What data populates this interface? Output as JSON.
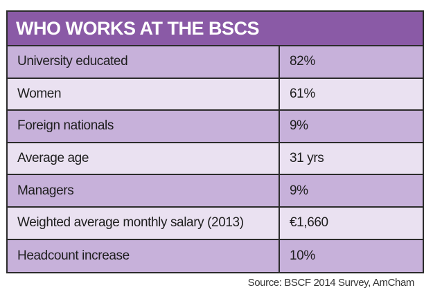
{
  "table": {
    "title": "WHO WORKS AT THE BSCS",
    "rows": [
      {
        "label": "University educated",
        "value": "82%"
      },
      {
        "label": "Women",
        "value": "61%"
      },
      {
        "label": "Foreign nationals",
        "value": "9%"
      },
      {
        "label": "Average age",
        "value": "31 yrs"
      },
      {
        "label": "Managers",
        "value": "9%"
      },
      {
        "label": "Weighted average monthly salary (2013)",
        "value": "€1,660"
      },
      {
        "label": "Headcount increase",
        "value": "10%"
      }
    ]
  },
  "source": "Source: BSCF 2014 Survey, AmCham",
  "colors": {
    "header_bg": "#8a5aa6",
    "row_dark": "#c7b1da",
    "row_light": "#eae1f1",
    "border": "#2b2b2b"
  }
}
